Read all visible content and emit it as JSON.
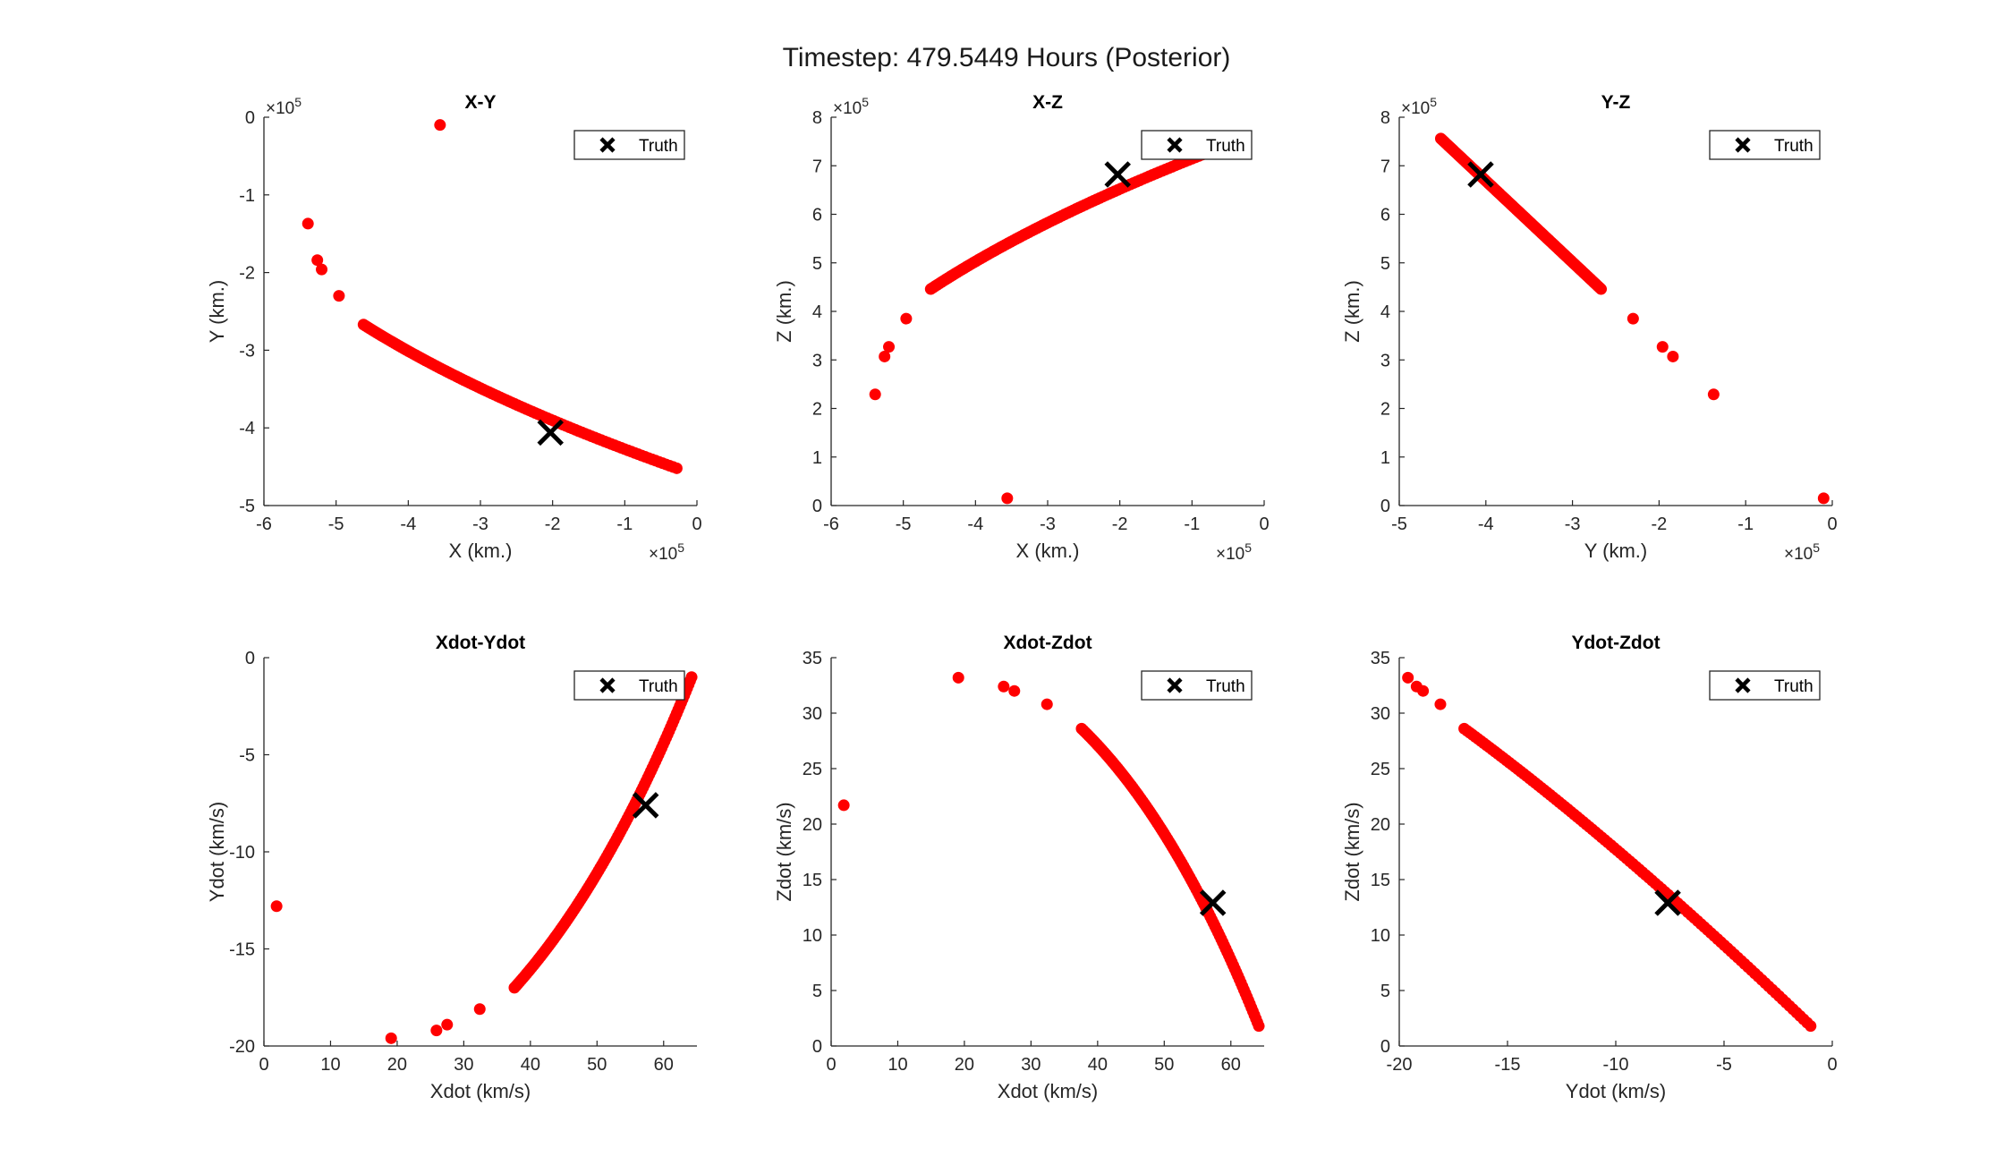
{
  "figure": {
    "title": "Timestep: 479.5449 Hours (Posterior)",
    "colors": {
      "particles": "#ff0000",
      "truth": "#000000",
      "axes": "#262626"
    }
  },
  "chart_data": [
    {
      "type": "scatter",
      "title": "X-Y",
      "xlabel": "X (km.)",
      "ylabel": "Y (km.)",
      "xlim": [
        -6,
        0
      ],
      "ylim": [
        -5,
        0
      ],
      "xticks": [
        -6,
        -5,
        -4,
        -3,
        -2,
        -1,
        0
      ],
      "yticks": [
        -5,
        -4,
        -3,
        -2,
        -1,
        0
      ],
      "xexponent": "×10^5",
      "yexponent": "×10^5",
      "legend": {
        "label": "Truth",
        "location": "top-right"
      },
      "truth": {
        "x": -2.03,
        "y": -4.06
      },
      "particles": {
        "scattered": [
          [
            -3.56,
            -0.1
          ],
          [
            -5.39,
            -1.37
          ],
          [
            -5.26,
            -1.84
          ],
          [
            -5.2,
            -1.96
          ],
          [
            -4.96,
            -2.3
          ]
        ],
        "arc": {
          "from": [
            -4.62,
            -2.67
          ],
          "mid": [
            -3.0,
            -3.62
          ],
          "to": [
            -0.28,
            -4.52
          ]
        }
      },
      "grid": false
    },
    {
      "type": "scatter",
      "title": "X-Z",
      "xlabel": "X (km.)",
      "ylabel": "Z (km.)",
      "xlim": [
        -6,
        0
      ],
      "ylim": [
        0,
        8
      ],
      "xticks": [
        -6,
        -5,
        -4,
        -3,
        -2,
        -1,
        0
      ],
      "yticks": [
        0,
        1,
        2,
        3,
        4,
        5,
        6,
        7,
        8
      ],
      "xexponent": "×10^5",
      "yexponent": "×10^5",
      "legend": {
        "label": "Truth",
        "location": "top-right"
      },
      "truth": {
        "x": -2.03,
        "y": 6.82
      },
      "particles": {
        "scattered": [
          [
            -3.56,
            0.15
          ],
          [
            -5.39,
            2.29
          ],
          [
            -5.26,
            3.07
          ],
          [
            -5.2,
            3.27
          ],
          [
            -4.96,
            3.85
          ]
        ],
        "arc": {
          "from": [
            -4.62,
            4.46
          ],
          "mid": [
            -3.0,
            6.04
          ],
          "to": [
            -0.28,
            7.56
          ]
        }
      },
      "grid": false
    },
    {
      "type": "scatter",
      "title": "Y-Z",
      "xlabel": "Y (km.)",
      "ylabel": "Z (km.)",
      "xlim": [
        -5,
        0
      ],
      "ylim": [
        0,
        8
      ],
      "xticks": [
        -5,
        -4,
        -3,
        -2,
        -1,
        0
      ],
      "yticks": [
        0,
        1,
        2,
        3,
        4,
        5,
        6,
        7,
        8
      ],
      "xexponent": "×10^5",
      "yexponent": "×10^5",
      "legend": {
        "label": "Truth",
        "location": "top-right"
      },
      "truth": {
        "x": -4.06,
        "y": 6.82
      },
      "particles": {
        "scattered": [
          [
            -0.1,
            0.15
          ],
          [
            -1.37,
            2.29
          ],
          [
            -1.84,
            3.07
          ],
          [
            -1.96,
            3.27
          ],
          [
            -2.3,
            3.85
          ]
        ],
        "arc": {
          "from": [
            -2.67,
            4.46
          ],
          "mid": [
            -3.6,
            6.02
          ],
          "to": [
            -4.52,
            7.56
          ]
        }
      },
      "grid": false
    },
    {
      "type": "scatter",
      "title": "Xdot-Ydot",
      "xlabel": "Xdot (km/s)",
      "ylabel": "Ydot (km/s)",
      "xlim": [
        0,
        65
      ],
      "ylim": [
        -20,
        0
      ],
      "xticks": [
        0,
        10,
        20,
        30,
        40,
        50,
        60
      ],
      "yticks": [
        -20,
        -15,
        -10,
        -5,
        0
      ],
      "legend": {
        "label": "Truth",
        "location": "top-right"
      },
      "truth": {
        "x": 57.3,
        "y": -7.6
      },
      "particles": {
        "scattered": [
          [
            1.9,
            -12.8
          ],
          [
            19.1,
            -19.6
          ],
          [
            25.9,
            -19.2
          ],
          [
            27.5,
            -18.9
          ],
          [
            32.4,
            -18.1
          ]
        ],
        "arc": {
          "from": [
            37.6,
            -17.0
          ],
          "mid": [
            52.0,
            -11.5
          ],
          "to": [
            64.2,
            -1.0
          ]
        }
      },
      "grid": false
    },
    {
      "type": "scatter",
      "title": "Xdot-Zdot",
      "xlabel": "Xdot (km/s)",
      "ylabel": "Zdot (km/s)",
      "xlim": [
        0,
        65
      ],
      "ylim": [
        0,
        35
      ],
      "xticks": [
        0,
        10,
        20,
        30,
        40,
        50,
        60
      ],
      "yticks": [
        0,
        5,
        10,
        15,
        20,
        25,
        30,
        35
      ],
      "legend": {
        "label": "Truth",
        "location": "top-right"
      },
      "truth": {
        "x": 57.3,
        "y": 12.9
      },
      "particles": {
        "scattered": [
          [
            1.9,
            21.7
          ],
          [
            19.1,
            33.2
          ],
          [
            25.9,
            32.4
          ],
          [
            27.5,
            32.0
          ],
          [
            32.4,
            30.8
          ]
        ],
        "arc": {
          "from": [
            37.6,
            28.6
          ],
          "mid": [
            52.0,
            20.2
          ],
          "to": [
            64.2,
            1.8
          ]
        }
      },
      "grid": false
    },
    {
      "type": "scatter",
      "title": "Ydot-Zdot",
      "xlabel": "Ydot (km/s)",
      "ylabel": "Zdot (km/s)",
      "xlim": [
        -20,
        0
      ],
      "ylim": [
        0,
        35
      ],
      "xticks": [
        -20,
        -15,
        -10,
        -5,
        0
      ],
      "yticks": [
        0,
        5,
        10,
        15,
        20,
        25,
        30,
        35
      ],
      "legend": {
        "label": "Truth",
        "location": "top-right"
      },
      "truth": {
        "x": -7.6,
        "y": 12.9
      },
      "particles": {
        "scattered": [
          [
            -19.6,
            33.2
          ],
          [
            -19.2,
            32.4
          ],
          [
            -18.9,
            32.0
          ],
          [
            -18.1,
            30.8
          ]
        ],
        "arc": {
          "from": [
            -17.0,
            28.6
          ],
          "mid": [
            -10.0,
            18.6
          ],
          "to": [
            -1.0,
            1.8
          ]
        }
      },
      "grid": false
    }
  ]
}
